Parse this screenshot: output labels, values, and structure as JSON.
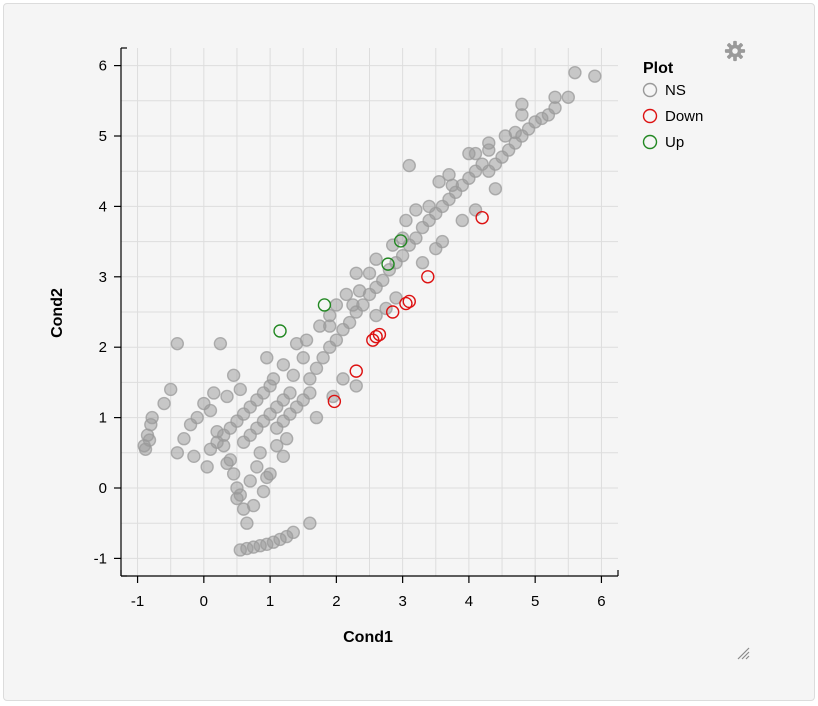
{
  "chart_data": {
    "type": "scatter",
    "xlabel": "Cond1",
    "ylabel": "Cond2",
    "xlim": [
      -1.25,
      6.25
    ],
    "ylim": [
      -1.25,
      6.25
    ],
    "xticks": [
      "-1",
      "0",
      "1",
      "2",
      "3",
      "4",
      "5",
      "6"
    ],
    "yticks": [
      "-1",
      "0",
      "1",
      "2",
      "3",
      "4",
      "5",
      "6"
    ],
    "grid": true,
    "legend": {
      "title": "Plot",
      "placement": "top-right",
      "entries": [
        "NS",
        "Down",
        "Up"
      ]
    },
    "series": [
      {
        "name": "NS",
        "color": "#999999",
        "points": [
          [
            -0.9,
            0.6
          ],
          [
            -0.85,
            0.75
          ],
          [
            -0.8,
            0.9
          ],
          [
            -0.78,
            1.0
          ],
          [
            -0.88,
            0.55
          ],
          [
            -0.82,
            0.68
          ],
          [
            -0.6,
            1.2
          ],
          [
            -0.5,
            1.4
          ],
          [
            -0.4,
            2.05
          ],
          [
            0.25,
            2.05
          ],
          [
            -0.4,
            0.5
          ],
          [
            -0.3,
            0.7
          ],
          [
            -0.2,
            0.9
          ],
          [
            -0.1,
            1.0
          ],
          [
            0.1,
            1.1
          ],
          [
            0.0,
            1.2
          ],
          [
            0.2,
            0.8
          ],
          [
            0.3,
            0.6
          ],
          [
            0.4,
            0.4
          ],
          [
            0.45,
            0.2
          ],
          [
            0.5,
            0.0
          ],
          [
            0.55,
            -0.1
          ],
          [
            0.6,
            -0.3
          ],
          [
            0.65,
            -0.5
          ],
          [
            0.5,
            -0.15
          ],
          [
            0.7,
            0.1
          ],
          [
            0.75,
            -0.25
          ],
          [
            0.8,
            0.3
          ],
          [
            0.9,
            -0.05
          ],
          [
            1.0,
            0.2
          ],
          [
            0.55,
            -0.88
          ],
          [
            0.65,
            -0.86
          ],
          [
            0.75,
            -0.84
          ],
          [
            0.85,
            -0.82
          ],
          [
            0.95,
            -0.8
          ],
          [
            1.05,
            -0.77
          ],
          [
            1.15,
            -0.73
          ],
          [
            1.25,
            -0.69
          ],
          [
            1.35,
            -0.63
          ],
          [
            1.6,
            -0.5
          ],
          [
            0.1,
            0.55
          ],
          [
            0.2,
            0.65
          ],
          [
            0.3,
            0.75
          ],
          [
            0.4,
            0.85
          ],
          [
            0.5,
            0.95
          ],
          [
            0.6,
            1.05
          ],
          [
            0.7,
            1.15
          ],
          [
            0.8,
            1.25
          ],
          [
            0.9,
            1.35
          ],
          [
            1.0,
            1.45
          ],
          [
            0.6,
            0.65
          ],
          [
            0.7,
            0.75
          ],
          [
            0.8,
            0.85
          ],
          [
            0.9,
            0.95
          ],
          [
            1.0,
            1.05
          ],
          [
            1.1,
            1.15
          ],
          [
            1.2,
            1.25
          ],
          [
            1.3,
            1.35
          ],
          [
            1.1,
            0.85
          ],
          [
            1.2,
            0.95
          ],
          [
            1.3,
            1.05
          ],
          [
            1.4,
            1.15
          ],
          [
            1.5,
            1.25
          ],
          [
            1.6,
            1.35
          ],
          [
            0.95,
            1.85
          ],
          [
            1.05,
            1.55
          ],
          [
            1.2,
            1.75
          ],
          [
            1.4,
            2.05
          ],
          [
            1.35,
            1.6
          ],
          [
            1.5,
            1.85
          ],
          [
            1.6,
            1.55
          ],
          [
            1.7,
            1.7
          ],
          [
            1.8,
            1.85
          ],
          [
            1.9,
            2.0
          ],
          [
            1.75,
            2.3
          ],
          [
            1.9,
            2.45
          ],
          [
            2.0,
            2.1
          ],
          [
            2.1,
            2.25
          ],
          [
            2.2,
            2.35
          ],
          [
            2.3,
            2.5
          ],
          [
            2.0,
            2.6
          ],
          [
            2.15,
            2.75
          ],
          [
            2.25,
            2.6
          ],
          [
            2.4,
            2.6
          ],
          [
            2.5,
            2.75
          ],
          [
            2.6,
            2.85
          ],
          [
            2.3,
            3.05
          ],
          [
            2.5,
            3.05
          ],
          [
            2.7,
            2.95
          ],
          [
            2.8,
            3.1
          ],
          [
            2.9,
            3.2
          ],
          [
            3.0,
            3.3
          ],
          [
            2.85,
            3.45
          ],
          [
            3.0,
            3.55
          ],
          [
            3.1,
            3.45
          ],
          [
            3.2,
            3.55
          ],
          [
            3.3,
            3.7
          ],
          [
            3.4,
            3.8
          ],
          [
            3.2,
            3.95
          ],
          [
            3.4,
            4.0
          ],
          [
            3.5,
            3.9
          ],
          [
            3.6,
            4.0
          ],
          [
            3.7,
            4.1
          ],
          [
            3.8,
            4.2
          ],
          [
            3.55,
            4.35
          ],
          [
            3.75,
            4.3
          ],
          [
            3.9,
            4.3
          ],
          [
            4.0,
            4.4
          ],
          [
            4.1,
            4.5
          ],
          [
            4.2,
            4.6
          ],
          [
            4.1,
            4.75
          ],
          [
            4.3,
            4.8
          ],
          [
            4.3,
            4.5
          ],
          [
            4.4,
            4.6
          ],
          [
            4.5,
            4.7
          ],
          [
            4.6,
            4.8
          ],
          [
            4.55,
            5.0
          ],
          [
            4.7,
            5.05
          ],
          [
            4.7,
            4.9
          ],
          [
            4.8,
            5.0
          ],
          [
            4.9,
            5.1
          ],
          [
            5.0,
            5.2
          ],
          [
            4.8,
            5.3
          ],
          [
            5.1,
            5.25
          ],
          [
            5.2,
            5.3
          ],
          [
            5.3,
            5.4
          ],
          [
            5.5,
            5.55
          ],
          [
            5.6,
            5.9
          ],
          [
            5.9,
            5.85
          ],
          [
            2.1,
            1.55
          ],
          [
            2.3,
            1.45
          ],
          [
            1.95,
            1.3
          ],
          [
            1.7,
            1.0
          ],
          [
            3.1,
            4.58
          ],
          [
            4.0,
            4.75
          ],
          [
            3.3,
            3.2
          ],
          [
            3.5,
            3.4
          ],
          [
            3.6,
            3.5
          ],
          [
            3.9,
            3.8
          ],
          [
            4.1,
            3.95
          ],
          [
            4.4,
            4.25
          ],
          [
            2.6,
            2.45
          ],
          [
            2.75,
            2.55
          ],
          [
            2.9,
            2.7
          ],
          [
            1.1,
            0.6
          ],
          [
            1.25,
            0.7
          ],
          [
            0.85,
            0.5
          ],
          [
            -0.15,
            0.45
          ],
          [
            0.05,
            0.3
          ],
          [
            0.35,
            0.35
          ],
          [
            0.15,
            1.35
          ],
          [
            0.35,
            1.3
          ],
          [
            0.55,
            1.4
          ],
          [
            0.45,
            1.6
          ],
          [
            1.55,
            2.1
          ],
          [
            1.9,
            2.3
          ],
          [
            2.35,
            2.8
          ],
          [
            2.6,
            3.25
          ],
          [
            3.05,
            3.8
          ],
          [
            3.7,
            4.45
          ],
          [
            4.3,
            4.9
          ],
          [
            4.8,
            5.45
          ],
          [
            5.3,
            5.55
          ],
          [
            1.2,
            0.45
          ],
          [
            0.95,
            0.15
          ]
        ]
      },
      {
        "name": "Down",
        "color": "#dd1111",
        "points": [
          [
            1.97,
            1.23
          ],
          [
            2.3,
            1.66
          ],
          [
            2.55,
            2.1
          ],
          [
            2.6,
            2.15
          ],
          [
            2.65,
            2.18
          ],
          [
            2.85,
            2.5
          ],
          [
            3.05,
            2.62
          ],
          [
            3.1,
            2.65
          ],
          [
            3.38,
            3.0
          ],
          [
            4.2,
            3.84
          ]
        ]
      },
      {
        "name": "Up",
        "color": "#228822",
        "points": [
          [
            1.15,
            2.23
          ],
          [
            1.82,
            2.6
          ],
          [
            2.78,
            3.18
          ],
          [
            2.97,
            3.51
          ]
        ]
      }
    ]
  }
}
